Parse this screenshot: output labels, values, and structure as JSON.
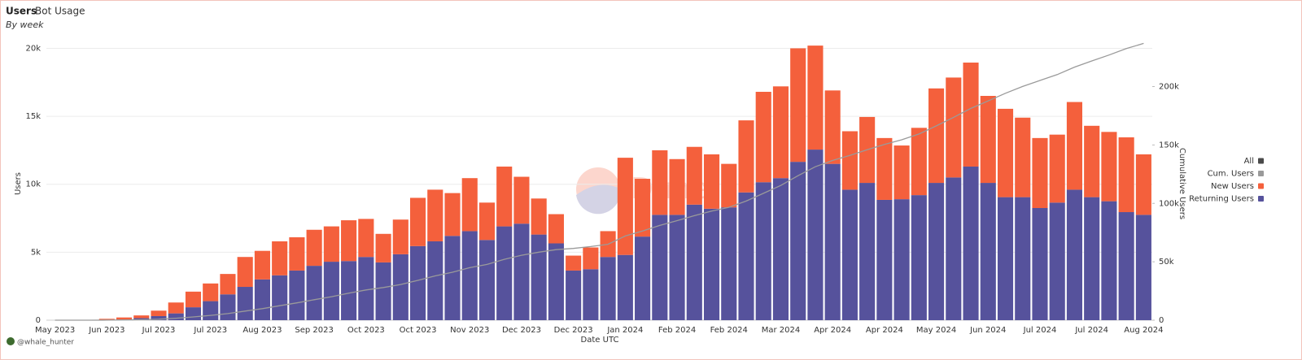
{
  "chart_data": {
    "type": "stacked-bar-line",
    "title": "Users",
    "tab": "Bot Usage",
    "subtitle": "By week",
    "x_label": "Date UTC",
    "y_label": "Users",
    "y2_label": "Cumulative Users",
    "credit": "@whale_hunter",
    "watermark": "Dune",
    "legend_extra": {
      "name": "All",
      "color": "#4a4a4a"
    },
    "categories": [
      "May 2023",
      null,
      null,
      "Jun 2023",
      null,
      null,
      "Jul 2023",
      null,
      null,
      "Jul 2023",
      null,
      null,
      "Aug 2023",
      null,
      null,
      "Sep 2023",
      null,
      null,
      "Oct 2023",
      null,
      null,
      "Oct 2023",
      null,
      null,
      "Nov 2023",
      null,
      null,
      "Dec 2023",
      null,
      null,
      "Dec 2023",
      null,
      null,
      "Jan 2024",
      null,
      null,
      "Feb 2024",
      null,
      null,
      "Feb 2024",
      null,
      null,
      "Mar 2024",
      null,
      null,
      "Apr 2024",
      null,
      null,
      "Apr 2024",
      null,
      null,
      "May 2024",
      null,
      null,
      "Jun 2024",
      null,
      null,
      "Jul 2024",
      null,
      null,
      "Jul 2024",
      null,
      null,
      "Aug 2024"
    ],
    "series": [
      {
        "name": "Returning Users",
        "color": "#56529c",
        "values": [
          0,
          0,
          0,
          0,
          50,
          150,
          300,
          500,
          950,
          1400,
          1900,
          2450,
          3000,
          3300,
          3650,
          4000,
          4300,
          4350,
          4650,
          4250,
          4850,
          5450,
          5800,
          6200,
          6550,
          5900,
          6900,
          7100,
          6300,
          5650,
          3650,
          3750,
          4650,
          4800,
          6150,
          7750,
          7750,
          8500,
          8200,
          8300,
          9400,
          10150,
          10450,
          11650,
          12550,
          11500,
          9600,
          10100,
          8850,
          8900,
          9200,
          10100,
          10500,
          11300,
          10100,
          9050,
          9050,
          8250,
          8650,
          9600,
          9050,
          8750,
          7950,
          7750
        ]
      },
      {
        "name": "New Users",
        "color": "#f4603c",
        "values": [
          0,
          0,
          0,
          100,
          150,
          200,
          400,
          800,
          1150,
          1300,
          1500,
          2200,
          2100,
          2500,
          2450,
          2650,
          2600,
          3000,
          2800,
          2100,
          2550,
          3550,
          3800,
          3150,
          3900,
          2750,
          4400,
          3450,
          2650,
          2150,
          1100,
          1600,
          1900,
          7150,
          4250,
          4750,
          4100,
          4250,
          4000,
          3200,
          5300,
          6650,
          6750,
          8350,
          7650,
          5400,
          4300,
          4850,
          4550,
          3950,
          4950,
          6950,
          7350,
          7650,
          6400,
          6500,
          5850,
          5150,
          5000,
          6450,
          5250,
          5100,
          5500,
          4450
        ]
      },
      {
        "name": "Cum. Users",
        "color": "#9a9a9a",
        "axis": "y2",
        "values": [
          0,
          0,
          0,
          100,
          250,
          450,
          850,
          1650,
          2800,
          4100,
          5600,
          7800,
          9900,
          12400,
          14850,
          17500,
          20100,
          23100,
          25900,
          28000,
          30550,
          34100,
          37900,
          41050,
          44950,
          47700,
          52100,
          55550,
          58200,
          60350,
          61450,
          63050,
          64950,
          72100,
          76350,
          81100,
          85200,
          89450,
          93450,
          96650,
          101950,
          108600,
          115350,
          123700,
          131350,
          136750,
          141050,
          145900,
          150450,
          154400,
          159350,
          166300,
          173650,
          181300,
          187700,
          194200,
          200050,
          205200,
          210200,
          216650,
          221900,
          227000,
          232500,
          236950
        ]
      }
    ],
    "ylim": [
      0,
      22000
    ],
    "yticks": [
      0,
      {
        "value": 5000,
        "label": "5k"
      },
      {
        "value": 10000,
        "label": "10k"
      },
      {
        "value": 15000,
        "label": "15k"
      },
      {
        "value": 20000,
        "label": "20k"
      }
    ],
    "y2lim": [
      0,
      256000
    ],
    "y2ticks": [
      0,
      {
        "value": 50000,
        "label": "50k"
      },
      {
        "value": 100000,
        "label": "100k"
      },
      {
        "value": 150000,
        "label": "150k"
      },
      {
        "value": 200000,
        "label": "200k"
      }
    ],
    "grid": true
  }
}
